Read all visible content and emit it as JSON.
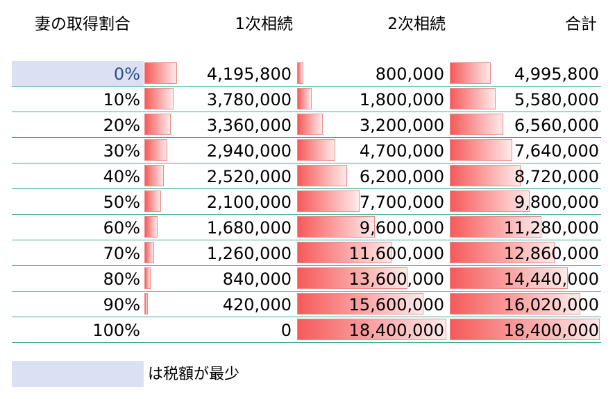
{
  "headers": {
    "wife_share": "妻の取得割合",
    "first_inheritance": "1次相続",
    "second_inheritance": "2次相続",
    "total": "合計"
  },
  "rows": [
    {
      "pct": "0%",
      "c1": "4,195,800",
      "c2": "800,000",
      "total": "4,995,800",
      "v1": 4195800,
      "v2": 800000,
      "vt": 4995800,
      "minimum": true
    },
    {
      "pct": "10%",
      "c1": "3,780,000",
      "c2": "1,800,000",
      "total": "5,580,000",
      "v1": 3780000,
      "v2": 1800000,
      "vt": 5580000,
      "minimum": false
    },
    {
      "pct": "20%",
      "c1": "3,360,000",
      "c2": "3,200,000",
      "total": "6,560,000",
      "v1": 3360000,
      "v2": 3200000,
      "vt": 6560000,
      "minimum": false
    },
    {
      "pct": "30%",
      "c1": "2,940,000",
      "c2": "4,700,000",
      "total": "7,640,000",
      "v1": 2940000,
      "v2": 4700000,
      "vt": 7640000,
      "minimum": false
    },
    {
      "pct": "40%",
      "c1": "2,520,000",
      "c2": "6,200,000",
      "total": "8,720,000",
      "v1": 2520000,
      "v2": 6200000,
      "vt": 8720000,
      "minimum": false
    },
    {
      "pct": "50%",
      "c1": "2,100,000",
      "c2": "7,700,000",
      "total": "9,800,000",
      "v1": 2100000,
      "v2": 7700000,
      "vt": 9800000,
      "minimum": false
    },
    {
      "pct": "60%",
      "c1": "1,680,000",
      "c2": "9,600,000",
      "total": "11,280,000",
      "v1": 1680000,
      "v2": 9600000,
      "vt": 11280000,
      "minimum": false
    },
    {
      "pct": "70%",
      "c1": "1,260,000",
      "c2": "11,600,000",
      "total": "12,860,000",
      "v1": 1260000,
      "v2": 11600000,
      "vt": 12860000,
      "minimum": false
    },
    {
      "pct": "80%",
      "c1": "840,000",
      "c2": "13,600,000",
      "total": "14,440,000",
      "v1": 840000,
      "v2": 13600000,
      "vt": 14440000,
      "minimum": false
    },
    {
      "pct": "90%",
      "c1": "420,000",
      "c2": "15,600,000",
      "total": "16,020,000",
      "v1": 420000,
      "v2": 15600000,
      "vt": 16020000,
      "minimum": false
    },
    {
      "pct": "100%",
      "c1": "0",
      "c2": "18,400,000",
      "total": "18,400,000",
      "v1": 0,
      "v2": 18400000,
      "vt": 18400000,
      "minimum": false
    }
  ],
  "legend": {
    "text": "は税額が最少",
    "highlight_color": "#d9e1f2"
  },
  "colors": {
    "bar_start": "#f65a5a",
    "bar_end": "#ffeaea",
    "row_divider": "#3aa89c",
    "minimum_text": "#2f4a8f"
  }
}
